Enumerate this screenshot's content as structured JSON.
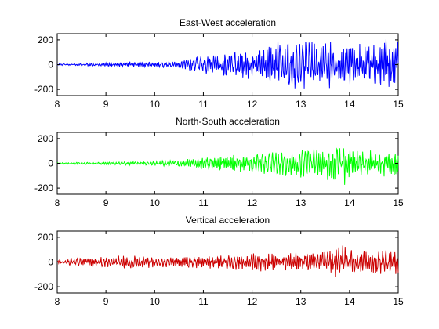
{
  "chart_data": [
    {
      "type": "line",
      "title": "East-West acceleration",
      "xlabel": "",
      "ylabel": "",
      "xlim": [
        8,
        15
      ],
      "ylim": [
        -250,
        250
      ],
      "xticks": [
        8,
        9,
        10,
        11,
        12,
        13,
        14,
        15
      ],
      "yticks": [
        200,
        0,
        -200
      ],
      "xtick_labels": [
        "8",
        "9",
        "10",
        "11",
        "12",
        "13",
        "14",
        "15"
      ],
      "ytick_labels": [
        "200",
        "0",
        "-200"
      ],
      "grid": false,
      "series": [
        {
          "color": "#0000ff",
          "x": [
            8.0,
            8.5,
            9.0,
            9.5,
            10.0,
            10.5,
            10.7,
            11.0,
            11.5,
            12.0,
            12.5,
            13.0,
            13.5,
            14.0,
            14.5,
            14.8,
            15.0
          ],
          "amplitude": [
            6,
            10,
            18,
            25,
            25,
            30,
            60,
            80,
            100,
            130,
            200,
            220,
            200,
            180,
            190,
            250,
            200
          ]
        }
      ]
    },
    {
      "type": "line",
      "title": "North-South acceleration",
      "xlabel": "",
      "ylabel": "",
      "xlim": [
        8,
        15
      ],
      "ylim": [
        -250,
        250
      ],
      "xticks": [
        8,
        9,
        10,
        11,
        12,
        13,
        14,
        15
      ],
      "yticks": [
        200,
        0,
        -200
      ],
      "xtick_labels": [
        "8",
        "9",
        "10",
        "11",
        "12",
        "13",
        "14",
        "15"
      ],
      "ytick_labels": [
        "200",
        "0",
        "-200"
      ],
      "grid": false,
      "series": [
        {
          "color": "#00ff00",
          "x": [
            8.0,
            8.5,
            9.0,
            9.5,
            10.0,
            10.5,
            11.0,
            11.5,
            12.0,
            12.5,
            13.0,
            13.5,
            13.85,
            14.0,
            14.5,
            15.0
          ],
          "amplitude": [
            6,
            10,
            12,
            15,
            20,
            30,
            50,
            70,
            80,
            110,
            120,
            130,
            200,
            130,
            110,
            110
          ]
        }
      ]
    },
    {
      "type": "line",
      "title": "Vertical acceleration",
      "xlabel": "",
      "ylabel": "",
      "xlim": [
        8,
        15
      ],
      "ylim": [
        -250,
        250
      ],
      "xticks": [
        8,
        9,
        10,
        11,
        12,
        13,
        14,
        15
      ],
      "yticks": [
        200,
        0,
        -200
      ],
      "xtick_labels": [
        "8",
        "9",
        "10",
        "11",
        "12",
        "13",
        "14",
        "15"
      ],
      "ytick_labels": [
        "200",
        "0",
        "-200"
      ],
      "grid": false,
      "series": [
        {
          "color": "#cc0000",
          "x": [
            8.0,
            8.5,
            9.0,
            9.5,
            10.0,
            10.5,
            11.0,
            11.5,
            12.0,
            12.5,
            13.0,
            13.5,
            13.85,
            14.0,
            14.5,
            15.0
          ],
          "amplitude": [
            25,
            35,
            45,
            60,
            45,
            45,
            55,
            60,
            75,
            75,
            85,
            95,
            150,
            120,
            100,
            110
          ]
        }
      ]
    }
  ]
}
